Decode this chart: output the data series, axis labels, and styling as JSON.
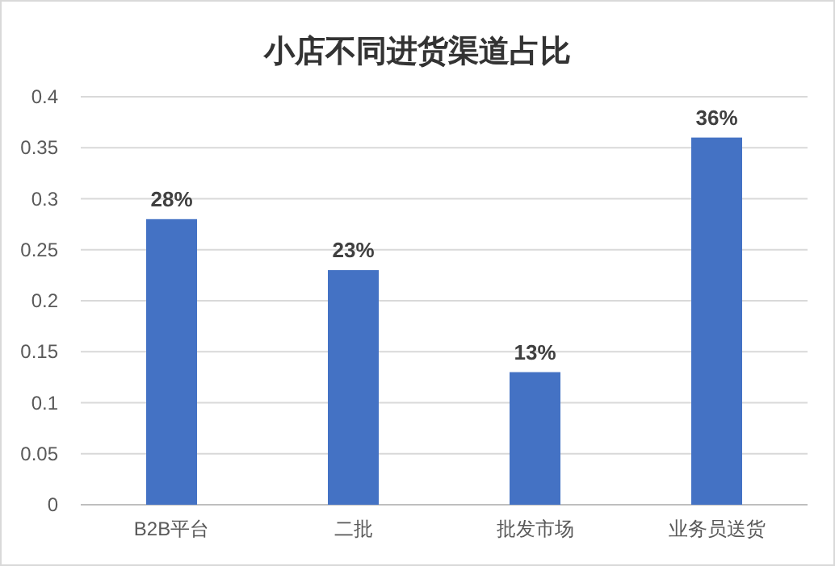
{
  "chart_data": {
    "type": "bar",
    "title": "小店不同进货渠道占比",
    "categories": [
      "B2B平台",
      "二批",
      "批发市场",
      "业务员送货"
    ],
    "values": [
      0.28,
      0.23,
      0.13,
      0.36
    ],
    "value_labels": [
      "28%",
      "23%",
      "13%",
      "36%"
    ],
    "color": "#4472c4",
    "ylim": [
      0,
      0.4
    ],
    "yticks": [
      0,
      0.05,
      0.1,
      0.15,
      0.2,
      0.25,
      0.3,
      0.35,
      0.4
    ],
    "grid": "y"
  }
}
